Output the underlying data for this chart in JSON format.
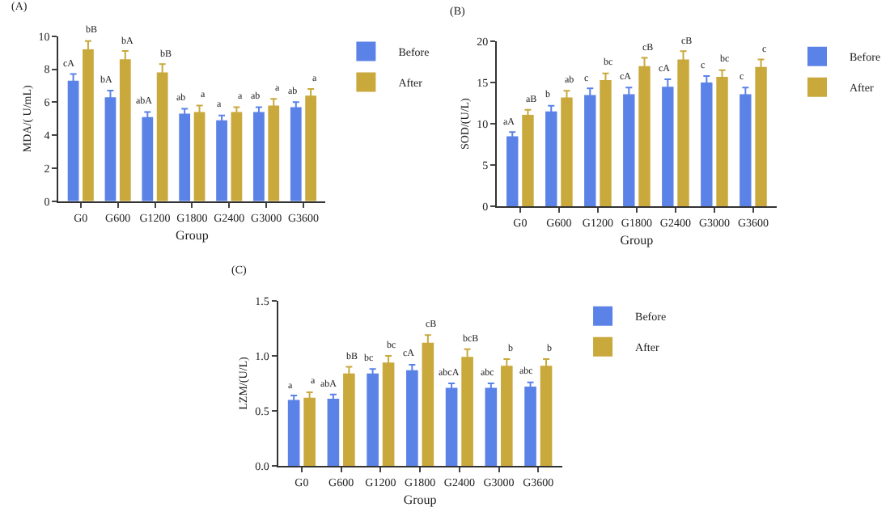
{
  "chart_data": [
    {
      "type": "bar",
      "title": "(A)",
      "xlabel": "Group",
      "ylabel": "MDA/( U/mL)",
      "categories": [
        "G0",
        "G600",
        "G1200",
        "G1800",
        "G2400",
        "G3000",
        "G3600"
      ],
      "ylim": [
        0,
        10
      ],
      "yticks": [
        0,
        2,
        4,
        6,
        8,
        10
      ],
      "legend": "top right",
      "series": [
        {
          "name": "Before",
          "color": "#5b82e6",
          "values": [
            7.3,
            6.3,
            5.1,
            5.3,
            4.9,
            5.4,
            5.7
          ],
          "errors": [
            0.4,
            0.4,
            0.3,
            0.3,
            0.3,
            0.3,
            0.3
          ],
          "value_labels": [
            "cA",
            "bA",
            "abA",
            "ab",
            "a",
            "ab",
            "ab"
          ]
        },
        {
          "name": "After",
          "color": "#c9a83c",
          "values": [
            9.2,
            8.6,
            7.8,
            5.4,
            5.4,
            5.8,
            6.4
          ],
          "errors": [
            0.5,
            0.5,
            0.5,
            0.4,
            0.3,
            0.4,
            0.4
          ],
          "value_labels": [
            "bB",
            "bA",
            "bB",
            "a",
            "a",
            "a",
            "a"
          ]
        }
      ]
    },
    {
      "type": "bar",
      "title": "(B)",
      "xlabel": "Group",
      "ylabel": "SOD/(U/L)",
      "categories": [
        "G0",
        "G600",
        "G1200",
        "G1800",
        "G2400",
        "G3000",
        "G3600"
      ],
      "ylim": [
        0,
        20
      ],
      "yticks": [
        0,
        5,
        10,
        15,
        20
      ],
      "legend": "top right",
      "series": [
        {
          "name": "Before",
          "color": "#5b82e6",
          "values": [
            8.5,
            11.5,
            13.5,
            13.6,
            14.5,
            15.0,
            13.6
          ],
          "errors": [
            0.5,
            0.7,
            0.8,
            0.8,
            0.9,
            0.8,
            0.8
          ],
          "value_labels": [
            "aA",
            "b",
            "c",
            "cA",
            "cA",
            "c",
            "c"
          ]
        },
        {
          "name": "After",
          "color": "#c9a83c",
          "values": [
            11.1,
            13.2,
            15.3,
            17.0,
            17.8,
            15.7,
            16.9
          ],
          "errors": [
            0.6,
            0.8,
            0.8,
            1.0,
            1.0,
            0.8,
            0.9
          ],
          "value_labels": [
            "aB",
            "ab",
            "bc",
            "cB",
            "cB",
            "bc",
            "c"
          ]
        }
      ]
    },
    {
      "type": "bar",
      "title": "(C)",
      "xlabel": "Group",
      "ylabel": "LZM/(U/L)",
      "categories": [
        "G0",
        "G600",
        "G1200",
        "G1800",
        "G2400",
        "G3000",
        "G3600"
      ],
      "ylim": [
        0,
        1.5
      ],
      "yticks": [
        {
          "value": 0,
          "label": "0.0"
        },
        0.5,
        {
          "value": 1,
          "label": "1.0"
        },
        1.5
      ],
      "legend": "top right",
      "series": [
        {
          "name": "Before",
          "color": "#5b82e6",
          "values": [
            0.6,
            0.61,
            0.84,
            0.87,
            0.71,
            0.71,
            0.72
          ],
          "errors": [
            0.04,
            0.04,
            0.04,
            0.05,
            0.04,
            0.04,
            0.04
          ],
          "value_labels": [
            "a",
            "abA",
            "bc",
            "cA",
            "abcA",
            "abc",
            "abc"
          ]
        },
        {
          "name": "After",
          "color": "#c9a83c",
          "values": [
            0.62,
            0.84,
            0.94,
            1.12,
            0.99,
            0.91,
            0.91
          ],
          "errors": [
            0.05,
            0.06,
            0.06,
            0.07,
            0.07,
            0.06,
            0.06
          ],
          "value_labels": [
            "a",
            "bB",
            "bc",
            "cB",
            "bcB",
            "b",
            "b"
          ]
        }
      ]
    }
  ]
}
